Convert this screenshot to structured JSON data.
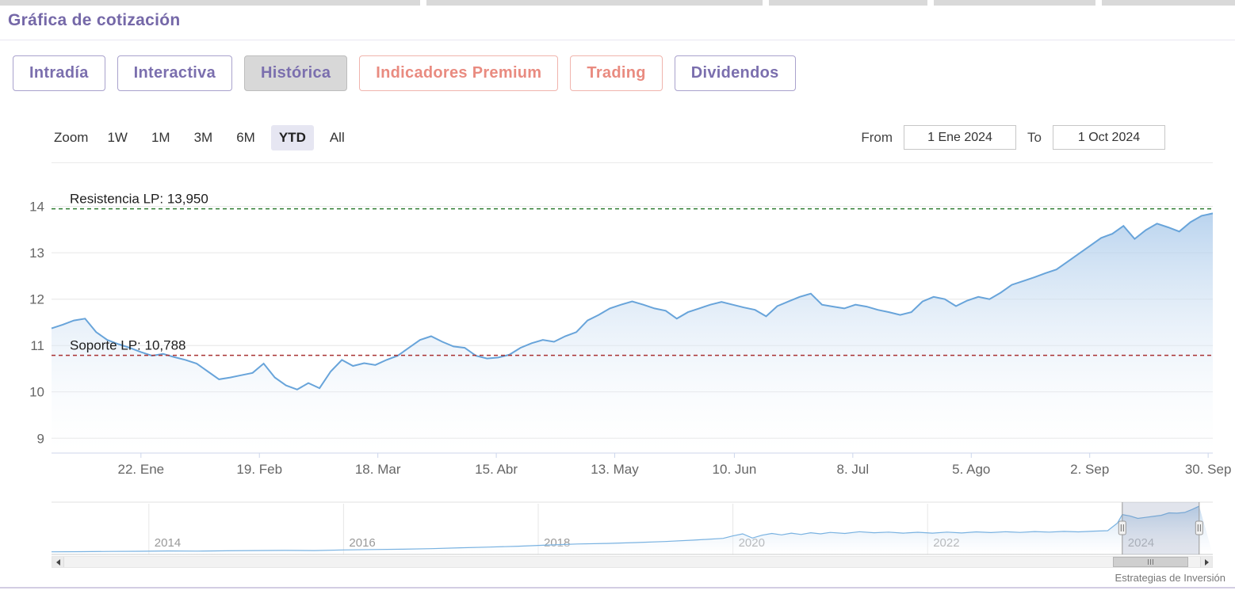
{
  "page": {
    "title": "Gráfica de cotización",
    "credit": "Estrategias de Inversión"
  },
  "tabs": [
    {
      "label": "Intradía",
      "variant": "purple",
      "active": false
    },
    {
      "label": "Interactiva",
      "variant": "purple",
      "active": false
    },
    {
      "label": "Histórica",
      "variant": "purple",
      "active": true
    },
    {
      "label": "Indicadores Premium",
      "variant": "red",
      "active": false
    },
    {
      "label": "Trading",
      "variant": "red",
      "active": false
    },
    {
      "label": "Dividendos",
      "variant": "purple",
      "active": false
    }
  ],
  "toolbar": {
    "zoom_label": "Zoom",
    "ranges": [
      {
        "label": "1W",
        "selected": false
      },
      {
        "label": "1M",
        "selected": false
      },
      {
        "label": "3M",
        "selected": false
      },
      {
        "label": "6M",
        "selected": false
      },
      {
        "label": "YTD",
        "selected": true
      },
      {
        "label": "All",
        "selected": false
      }
    ],
    "from_label": "From",
    "from_value": "1 Ene 2024",
    "to_label": "To",
    "to_value": "1 Oct 2024"
  },
  "colors": {
    "accent_purple": "#7568a8",
    "accent_red": "#e98b80",
    "grid": "#e6e6e6",
    "axis": "#ccd6eb"
  },
  "chart_data": {
    "type": "area",
    "title": "",
    "main": {
      "ylim": [
        8.68,
        14.78
      ],
      "yticks": [
        9,
        10,
        11,
        12,
        13,
        14
      ],
      "xticks": [
        {
          "label": "22. Ene",
          "f": 0.077
        },
        {
          "label": "19. Feb",
          "f": 0.179
        },
        {
          "label": "18. Mar",
          "f": 0.281
        },
        {
          "label": "15. Abr",
          "f": 0.383
        },
        {
          "label": "13. May",
          "f": 0.485
        },
        {
          "label": "10. Jun",
          "f": 0.588
        },
        {
          "label": "8. Jul",
          "f": 0.69
        },
        {
          "label": "5. Ago",
          "f": 0.792
        },
        {
          "label": "2. Sep",
          "f": 0.894
        },
        {
          "label": "30. Sep",
          "f": 0.996
        }
      ],
      "x_range": [
        "1 Ene 2024",
        "1 Oct 2024"
      ],
      "values": [
        11.37,
        11.45,
        11.54,
        11.58,
        11.29,
        11.12,
        11.03,
        10.95,
        10.86,
        10.78,
        10.82,
        10.75,
        10.69,
        10.61,
        10.44,
        10.27,
        10.31,
        10.36,
        10.41,
        10.61,
        10.31,
        10.14,
        10.05,
        10.19,
        10.08,
        10.44,
        10.69,
        10.56,
        10.62,
        10.58,
        10.69,
        10.78,
        10.95,
        11.12,
        11.2,
        11.08,
        10.98,
        10.95,
        10.78,
        10.72,
        10.74,
        10.8,
        10.95,
        11.05,
        11.12,
        11.08,
        11.2,
        11.29,
        11.54,
        11.66,
        11.8,
        11.88,
        11.95,
        11.88,
        11.8,
        11.75,
        11.58,
        11.72,
        11.8,
        11.88,
        11.94,
        11.88,
        11.82,
        11.77,
        11.63,
        11.85,
        11.95,
        12.05,
        12.12,
        11.88,
        11.84,
        11.8,
        11.88,
        11.84,
        11.77,
        11.72,
        11.66,
        11.72,
        11.95,
        12.05,
        12.0,
        11.85,
        11.97,
        12.05,
        12.0,
        12.14,
        12.31,
        12.39,
        12.47,
        12.56,
        12.64,
        12.81,
        12.98,
        13.15,
        13.32,
        13.41,
        13.58,
        13.3,
        13.49,
        13.63,
        13.55,
        13.46,
        13.66,
        13.8,
        13.85
      ],
      "annotations": [
        {
          "label": "Resistencia LP: 13,950",
          "value": 13.95,
          "color": "#2f7e32"
        },
        {
          "label": "Soporte LP: 10,788",
          "value": 10.788,
          "color": "#a83232"
        }
      ],
      "line_color": "#68a4da",
      "fill_top": "#a9c9ea",
      "fill_bottom": "#ffffff",
      "grid": true,
      "legend": false
    },
    "navigator": {
      "xlim": [
        2013.0,
        2024.93
      ],
      "ylim": [
        0,
        14.5
      ],
      "xticks": [
        {
          "label": "2014",
          "x": 2014
        },
        {
          "label": "2016",
          "x": 2016
        },
        {
          "label": "2018",
          "x": 2018
        },
        {
          "label": "2020",
          "x": 2020
        },
        {
          "label": "2022",
          "x": 2022
        },
        {
          "label": "2024",
          "x": 2024
        }
      ],
      "x": [
        2013.0,
        2013.3,
        2013.6,
        2013.9,
        2014.2,
        2014.5,
        2014.8,
        2015.1,
        2015.4,
        2015.7,
        2016.0,
        2016.3,
        2016.6,
        2016.9,
        2017.2,
        2017.5,
        2017.8,
        2018.1,
        2018.4,
        2018.7,
        2019.0,
        2019.3,
        2019.6,
        2019.9,
        2020.0,
        2020.1,
        2020.2,
        2020.3,
        2020.4,
        2020.5,
        2020.6,
        2020.7,
        2020.8,
        2020.9,
        2021.0,
        2021.15,
        2021.3,
        2021.45,
        2021.6,
        2021.75,
        2021.9,
        2022.05,
        2022.2,
        2022.35,
        2022.5,
        2022.65,
        2022.8,
        2022.95,
        2023.1,
        2023.25,
        2023.4,
        2023.55,
        2023.7,
        2023.85,
        2023.95,
        2024.0,
        2024.08,
        2024.16,
        2024.24,
        2024.32,
        2024.4,
        2024.48,
        2024.56,
        2024.64,
        2024.72,
        2024.79
      ],
      "values": [
        0.75,
        0.8,
        0.85,
        0.9,
        1.0,
        0.95,
        1.05,
        1.1,
        1.15,
        1.1,
        1.3,
        1.4,
        1.5,
        1.65,
        1.9,
        2.1,
        2.35,
        2.7,
        3.0,
        3.15,
        3.4,
        3.7,
        4.1,
        4.6,
        5.3,
        5.9,
        4.7,
        5.5,
        6.0,
        5.6,
        6.1,
        5.7,
        6.2,
        5.9,
        6.3,
        6.0,
        6.5,
        6.2,
        6.4,
        6.1,
        6.35,
        6.1,
        6.4,
        6.15,
        6.45,
        6.25,
        6.5,
        6.3,
        6.55,
        6.4,
        6.6,
        6.45,
        6.65,
        6.8,
        9.0,
        11.4,
        11.0,
        10.3,
        10.6,
        10.9,
        11.2,
        11.9,
        11.8,
        12.0,
        12.9,
        13.8
      ],
      "selected_range": [
        2024.0,
        2024.79
      ],
      "line_color": "#79b2e1",
      "fill_top": "#aecdeb"
    }
  }
}
